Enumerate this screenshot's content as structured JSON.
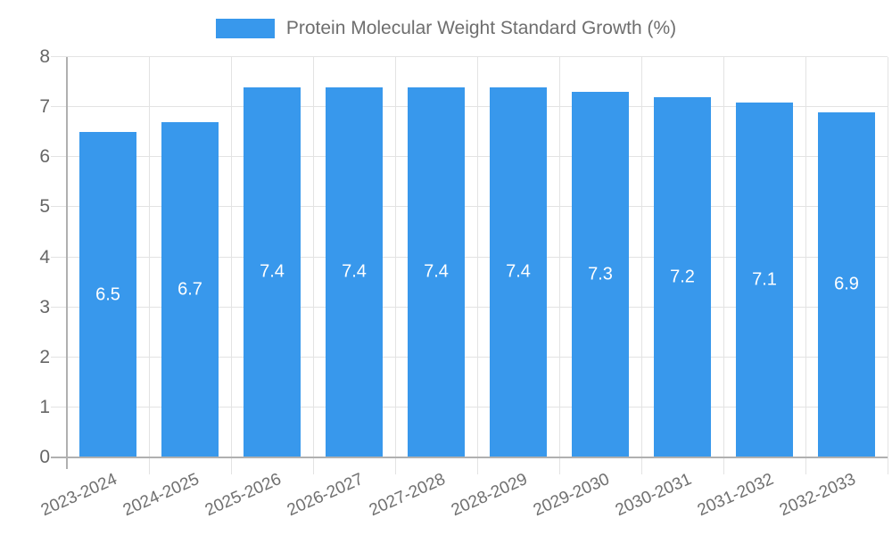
{
  "chart_data": {
    "type": "bar",
    "title": "",
    "legend_label": "Protein Molecular Weight Standard Growth (%)",
    "legend_position": "top-center",
    "categories": [
      "2023-2024",
      "2024-2025",
      "2025-2026",
      "2026-2027",
      "2027-2028",
      "2028-2029",
      "2029-2030",
      "2030-2031",
      "2031-2032",
      "2032-2033"
    ],
    "values": [
      6.5,
      6.7,
      7.4,
      7.4,
      7.4,
      7.4,
      7.3,
      7.2,
      7.1,
      6.9
    ],
    "bar_labels": [
      "6.5",
      "6.7",
      "7.4",
      "7.4",
      "7.4",
      "7.4",
      "7.3",
      "7.2",
      "7.1",
      "6.9"
    ],
    "xlabel": "",
    "ylabel": "",
    "ylim": [
      0,
      8
    ],
    "yticks": [
      "0",
      "1",
      "2",
      "3",
      "4",
      "5",
      "6",
      "7",
      "8"
    ],
    "grid": "on",
    "x_label_rotation_deg": -24,
    "colors": {
      "bar": "#3898ec",
      "grid": "#e3e3e3",
      "axis": "#b0b0b0",
      "tick_label": "#666666",
      "x_tick_label": "#707070",
      "legend_text": "#6e6e6e",
      "bar_value_label": "#ffffff",
      "background": "#ffffff"
    }
  }
}
